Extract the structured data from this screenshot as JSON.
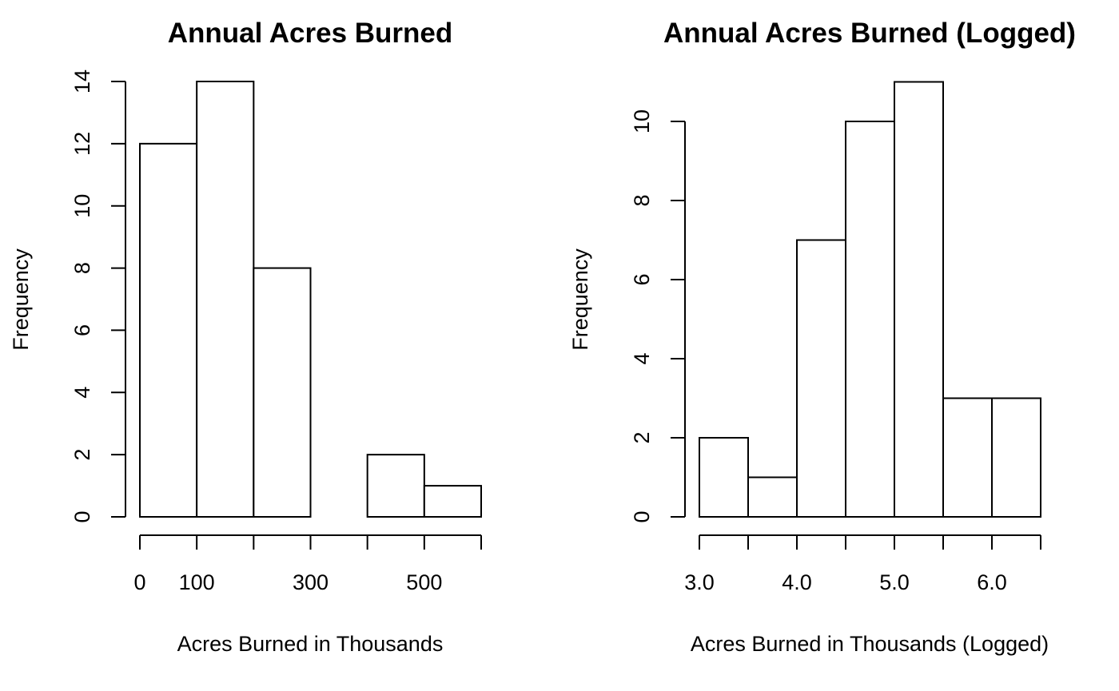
{
  "chart_data": [
    {
      "type": "bar",
      "title": "Annual Acres Burned",
      "xlabel": "Acres Burned in Thousands",
      "ylabel": "Frequency",
      "bin_edges": [
        0,
        100,
        200,
        300,
        400,
        500,
        600
      ],
      "values": [
        12,
        14,
        8,
        0,
        2,
        1
      ],
      "xlim": [
        0,
        600
      ],
      "ylim": [
        0,
        14
      ],
      "x_ticks": [
        0,
        100,
        200,
        300,
        400,
        500,
        600
      ],
      "x_tick_labels": [
        "0",
        "100",
        "",
        "300",
        "",
        "500",
        ""
      ],
      "y_ticks": [
        0,
        2,
        4,
        6,
        8,
        10,
        12,
        14
      ],
      "y_tick_labels": [
        "0",
        "2",
        "4",
        "6",
        "8",
        "10",
        "12",
        "14"
      ],
      "grid": false
    },
    {
      "type": "bar",
      "title": "Annual Acres Burned (Logged)",
      "xlabel": "Acres Burned in Thousands (Logged)",
      "ylabel": "Frequency",
      "bin_edges": [
        3.0,
        3.5,
        4.0,
        4.5,
        5.0,
        5.5,
        6.0,
        6.5
      ],
      "values": [
        2,
        1,
        7,
        10,
        11,
        3,
        3
      ],
      "xlim": [
        3.0,
        6.5
      ],
      "ylim": [
        0,
        11
      ],
      "x_ticks": [
        3.0,
        3.5,
        4.0,
        4.5,
        5.0,
        5.5,
        6.0,
        6.5
      ],
      "x_tick_labels": [
        "3.0",
        "",
        "4.0",
        "",
        "5.0",
        "",
        "6.0",
        ""
      ],
      "y_ticks": [
        0,
        2,
        4,
        6,
        8,
        10
      ],
      "y_tick_labels": [
        "0",
        "2",
        "4",
        "6",
        "8",
        "10"
      ],
      "grid": false
    }
  ]
}
